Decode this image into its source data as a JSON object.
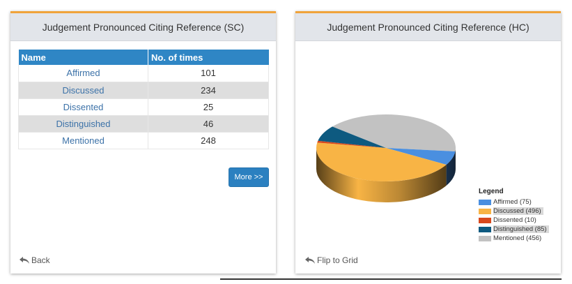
{
  "sc_panel": {
    "title": "Judgement Pronounced Citing Reference (SC)",
    "columns": [
      "Name",
      "No. of times"
    ],
    "rows": [
      {
        "name": "Affirmed",
        "count": "101"
      },
      {
        "name": "Discussed",
        "count": "234"
      },
      {
        "name": "Dissented",
        "count": "25"
      },
      {
        "name": "Distinguished",
        "count": "46"
      },
      {
        "name": "Mentioned",
        "count": "248"
      }
    ],
    "more_label": "More >>",
    "back_label": "Back"
  },
  "hc_panel": {
    "title": "Judgement Pronounced Citing Reference (HC)",
    "flip_label": "Flip to Grid",
    "legend_title": "Legend"
  },
  "colors": {
    "accent": "#f0a33a",
    "header_blue": "#2f86c5"
  },
  "chart_data": {
    "type": "pie",
    "title": "",
    "legend_position": "bottom-right",
    "slices": [
      {
        "label": "Affirmed (75)",
        "value": 75,
        "color": "#4a8fe0"
      },
      {
        "label": "Discussed (496)",
        "value": 496,
        "color": "#f8b445"
      },
      {
        "label": "Dissented (10)",
        "value": 10,
        "color": "#d8491d"
      },
      {
        "label": "Distinguished (85)",
        "value": 85,
        "color": "#0e5a80"
      },
      {
        "label": "Mentioned (456)",
        "value": 456,
        "color": "#c2c2c2"
      }
    ]
  }
}
